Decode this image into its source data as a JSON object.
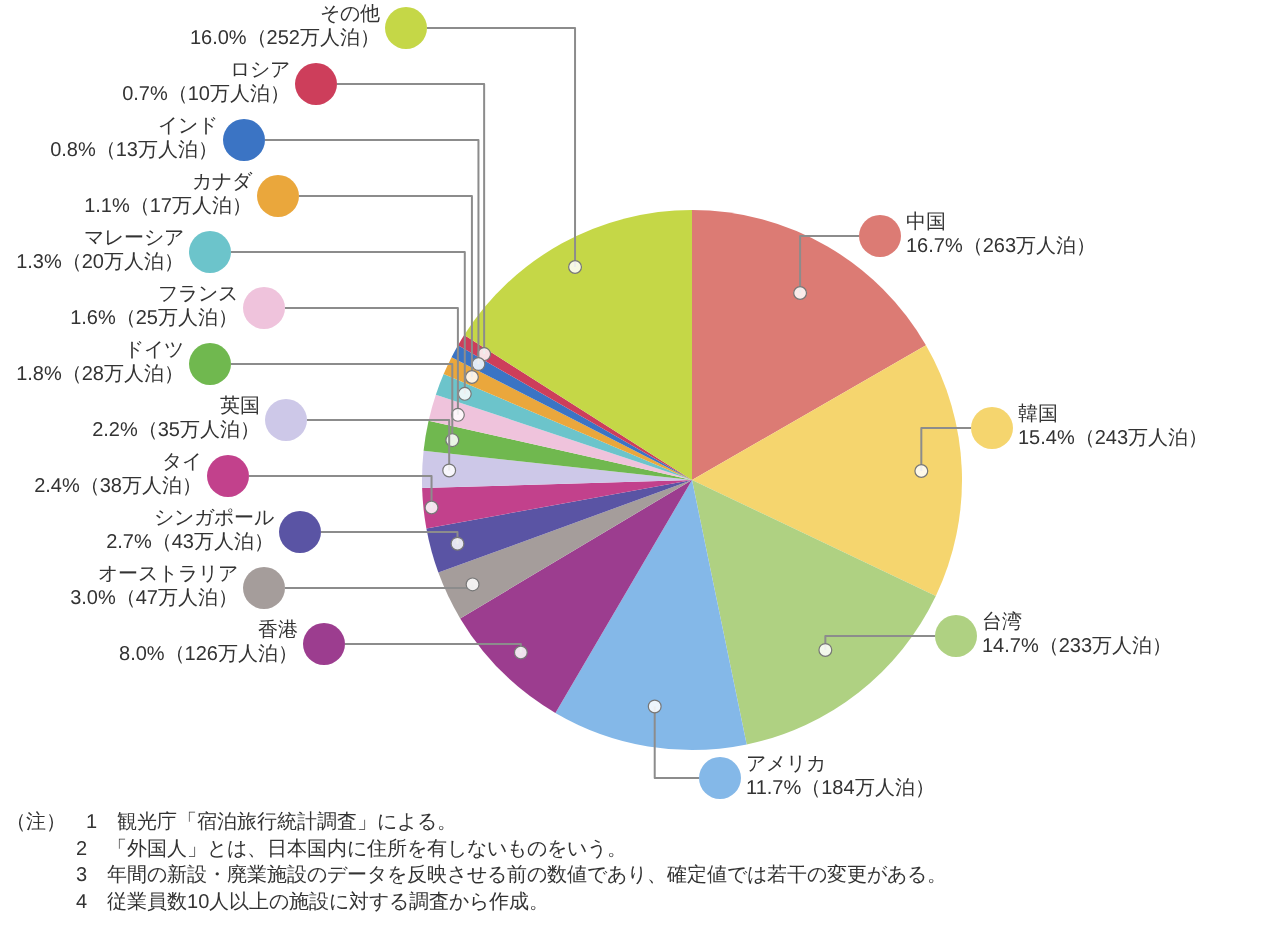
{
  "chart_data": {
    "type": "pie",
    "categories": [
      "中国",
      "韓国",
      "台湾",
      "アメリカ",
      "香港",
      "オーストラリア",
      "シンガポール",
      "タイ",
      "英国",
      "ドイツ",
      "フランス",
      "マレーシア",
      "カナダ",
      "インド",
      "ロシア",
      "その他"
    ],
    "values": [
      16.7,
      15.4,
      14.7,
      11.7,
      8.0,
      3.0,
      2.7,
      2.4,
      2.2,
      1.8,
      1.6,
      1.3,
      1.1,
      0.8,
      0.7,
      16.0
    ],
    "value_labels": [
      "16.7%（263万人泊）",
      "15.4%（243万人泊）",
      "14.7%（233万人泊）",
      "11.7%（184万人泊）",
      "8.0%（126万人泊）",
      "3.0%（47万人泊）",
      "2.7%（43万人泊）",
      "2.4%（38万人泊）",
      "2.2%（35万人泊）",
      "1.8%（28万人泊）",
      "1.6%（25万人泊）",
      "1.3%（20万人泊）",
      "1.1%（17万人泊）",
      "0.8%（13万人泊）",
      "0.7%（10万人泊）",
      "16.0%（252万人泊）"
    ],
    "colors": [
      "#dc7b74",
      "#f5d56e",
      "#afd182",
      "#84b8e8",
      "#9c3d8f",
      "#a59d9b",
      "#5a54a4",
      "#c2418c",
      "#cdc8e8",
      "#70b84f",
      "#efc3dc",
      "#6cc4cb",
      "#eaa73c",
      "#3b74c4",
      "#cd3e5b",
      "#c5d747"
    ],
    "legend": "top left",
    "annotations": [
      "（注）　1　観光庁「宿泊旅行統計調査」による。",
      "2　「外国人」とは、日本国内に住所を有しないものをいう。",
      "3　年間の新設・廃業施設のデータを反映させる前の数値であり、確定値では若干の変更がある。",
      "4　従業員数10人以上の施設に対する調査から作成。"
    ]
  }
}
